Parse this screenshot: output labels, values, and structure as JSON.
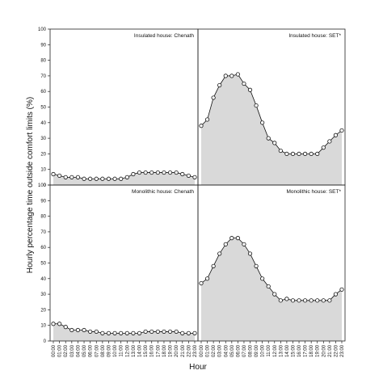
{
  "chart_data": {
    "type": "area",
    "layout": "2x2 facet grid, shared axes",
    "xlabel": "Hour",
    "ylabel": "Hourly percentage time outside comfort limits (%)",
    "x": [
      "00:00",
      "01:00",
      "02:00",
      "03:00",
      "04:00",
      "05:00",
      "06:00",
      "07:00",
      "08:00",
      "09:00",
      "10:00",
      "11:00",
      "12:00",
      "13:00",
      "14:00",
      "15:00",
      "16:00",
      "17:00",
      "18:00",
      "19:00",
      "20:00",
      "21:00",
      "22:00",
      "23:00"
    ],
    "ylim": [
      0,
      100
    ],
    "yticks": [
      0,
      10,
      20,
      30,
      40,
      50,
      60,
      70,
      80,
      90,
      100
    ],
    "grid": false,
    "colors": {
      "fill": "#d9d9d9",
      "line": "#111111",
      "marker_fill": "#ffffff"
    },
    "panels": [
      {
        "title": "Insulated house: Chenath",
        "values": [
          7,
          6,
          5,
          5,
          5,
          4,
          4,
          4,
          4,
          4,
          4,
          4,
          5,
          7,
          8,
          8,
          8,
          8,
          8,
          8,
          8,
          7,
          6,
          5
        ]
      },
      {
        "title": "Insulated house: SET*",
        "values": [
          38,
          42,
          56,
          64,
          70,
          70,
          71,
          65,
          61,
          51,
          40,
          30,
          27,
          22,
          20,
          20,
          20,
          20,
          20,
          20,
          24,
          28,
          32,
          35
        ]
      },
      {
        "title": "Monolithic house: Chenath",
        "values": [
          11,
          11,
          9,
          7,
          7,
          7,
          6,
          6,
          5,
          5,
          5,
          5,
          5,
          5,
          5,
          6,
          6,
          6,
          6,
          6,
          6,
          5,
          5,
          5
        ]
      },
      {
        "title": "Monolithic house: SET*",
        "values": [
          37,
          40,
          48,
          56,
          62,
          66,
          66,
          62,
          56,
          48,
          40,
          35,
          30,
          26,
          27,
          26,
          26,
          26,
          26,
          26,
          26,
          26,
          30,
          33
        ]
      }
    ]
  }
}
